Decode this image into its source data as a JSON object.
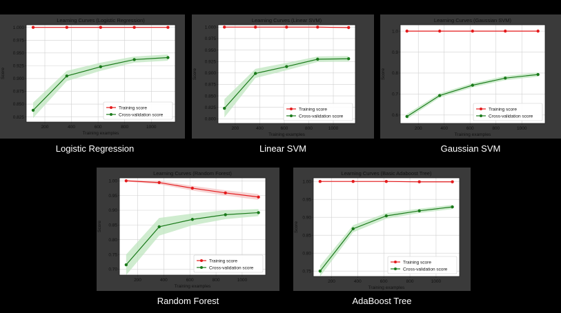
{
  "colors": {
    "training": "#e41a1c",
    "cv": "#1a7a1a",
    "cv_band": "#bfe6bf",
    "train_band": "#f4c5c5"
  },
  "legend": {
    "training": "Training score",
    "cv": "Cross-validation score"
  },
  "chart_data": [
    {
      "type": "line",
      "caption": "Logistic Regression",
      "title": "Learning Curves (Logistic Regression)",
      "xlabel": "Training examples",
      "ylabel": "Score",
      "xlim": [
        60,
        1180
      ],
      "ylim": [
        0.815,
        1.005
      ],
      "xticks": [
        200,
        400,
        600,
        800,
        1000
      ],
      "yticks": [
        0.825,
        0.85,
        0.875,
        0.9,
        0.925,
        0.95,
        0.975,
        1.0
      ],
      "ytick_labels": [
        "0.825",
        "0.850",
        "0.875",
        "0.900",
        "0.925",
        "0.950",
        "0.975",
        "1.000"
      ],
      "x": [
        112,
        365,
        619,
        872,
        1125
      ],
      "series": [
        {
          "name": "Training score",
          "values": [
            1.0,
            1.0,
            1.0,
            1.0,
            1.0
          ],
          "band": [
            0.001,
            0.001,
            0.001,
            0.001,
            0.001
          ]
        },
        {
          "name": "Cross-validation score",
          "values": [
            0.838,
            0.905,
            0.923,
            0.937,
            0.941
          ],
          "band": [
            0.015,
            0.01,
            0.008,
            0.006,
            0.006
          ]
        }
      ]
    },
    {
      "type": "line",
      "caption": "Linear SVM",
      "title": "Learning Curves (Linear SVM)",
      "xlabel": "Training examples",
      "ylabel": "Score",
      "xlim": [
        60,
        1180
      ],
      "ylim": [
        0.79,
        1.005
      ],
      "xticks": [
        200,
        400,
        600,
        800,
        1000
      ],
      "yticks": [
        0.8,
        0.825,
        0.85,
        0.875,
        0.9,
        0.925,
        0.95,
        0.975,
        1.0
      ],
      "ytick_labels": [
        "0.800",
        "0.825",
        "0.850",
        "0.875",
        "0.900",
        "0.925",
        "0.950",
        "0.975",
        "1.000"
      ],
      "x": [
        112,
        365,
        619,
        872,
        1125
      ],
      "series": [
        {
          "name": "Training score",
          "values": [
            1.0,
            1.0,
            1.0,
            1.0,
            0.999
          ],
          "band": [
            0.001,
            0.001,
            0.001,
            0.001,
            0.001
          ]
        },
        {
          "name": "Cross-validation score",
          "values": [
            0.823,
            0.899,
            0.914,
            0.93,
            0.931
          ],
          "band": [
            0.02,
            0.01,
            0.008,
            0.006,
            0.006
          ]
        }
      ]
    },
    {
      "type": "line",
      "caption": "Gaussian SVM",
      "title": "Learning Curves (Gaussian SVM)",
      "xlabel": "Training examples",
      "ylabel": "Score",
      "xlim": [
        60,
        1180
      ],
      "ylim": [
        0.56,
        1.03
      ],
      "xticks": [
        200,
        400,
        600,
        800,
        1000
      ],
      "yticks": [
        0.6,
        0.7,
        0.8,
        0.9,
        1.0
      ],
      "ytick_labels": [
        "0.6",
        "0.7",
        "0.8",
        "0.9",
        "1.0"
      ],
      "x": [
        112,
        365,
        619,
        872,
        1125
      ],
      "series": [
        {
          "name": "Training score",
          "values": [
            1.0,
            1.0,
            1.0,
            1.0,
            1.0
          ],
          "band": [
            0.002,
            0.002,
            0.002,
            0.002,
            0.002
          ]
        },
        {
          "name": "Cross-validation score",
          "values": [
            0.593,
            0.693,
            0.742,
            0.776,
            0.793
          ],
          "band": [
            0.012,
            0.01,
            0.01,
            0.01,
            0.01
          ]
        }
      ]
    },
    {
      "type": "line",
      "caption": "Random Forest",
      "title": "Learning Curves (Random Forest)",
      "xlabel": "Training examples",
      "ylabel": "Score",
      "xlim": [
        60,
        1180
      ],
      "ylim": [
        0.68,
        1.01
      ],
      "xticks": [
        200,
        400,
        600,
        800,
        1000
      ],
      "yticks": [
        0.7,
        0.75,
        0.8,
        0.85,
        0.9,
        0.95,
        1.0
      ],
      "ytick_labels": [
        "0.70",
        "0.75",
        "0.80",
        "0.85",
        "0.90",
        "0.95",
        "1.00"
      ],
      "x": [
        112,
        365,
        619,
        872,
        1125
      ],
      "series": [
        {
          "name": "Training score",
          "values": [
            1.0,
            0.994,
            0.975,
            0.959,
            0.945
          ],
          "band": [
            0.002,
            0.006,
            0.008,
            0.009,
            0.01
          ]
        },
        {
          "name": "Cross-validation score",
          "values": [
            0.715,
            0.844,
            0.869,
            0.885,
            0.892
          ],
          "band": [
            0.035,
            0.03,
            0.02,
            0.015,
            0.012
          ]
        }
      ]
    },
    {
      "type": "line",
      "caption": "AdaBoost Tree",
      "title": "Learning Curves (Basic Adaboost Tree)",
      "xlabel": "Training examples",
      "ylabel": "Score",
      "xlim": [
        60,
        1180
      ],
      "ylim": [
        0.735,
        1.01
      ],
      "xticks": [
        200,
        400,
        600,
        800,
        1000
      ],
      "yticks": [
        0.75,
        0.8,
        0.85,
        0.9,
        0.95,
        1.0
      ],
      "ytick_labels": [
        "0.75",
        "0.80",
        "0.85",
        "0.90",
        "0.95",
        "1.00"
      ],
      "x": [
        112,
        365,
        619,
        872,
        1125
      ],
      "series": [
        {
          "name": "Training score",
          "values": [
            1.0,
            1.0,
            1.0,
            0.999,
            0.999
          ],
          "band": [
            0.001,
            0.001,
            0.001,
            0.001,
            0.001
          ]
        },
        {
          "name": "Cross-validation score",
          "values": [
            0.75,
            0.868,
            0.904,
            0.918,
            0.929
          ],
          "band": [
            0.015,
            0.01,
            0.008,
            0.006,
            0.006
          ]
        }
      ]
    }
  ]
}
